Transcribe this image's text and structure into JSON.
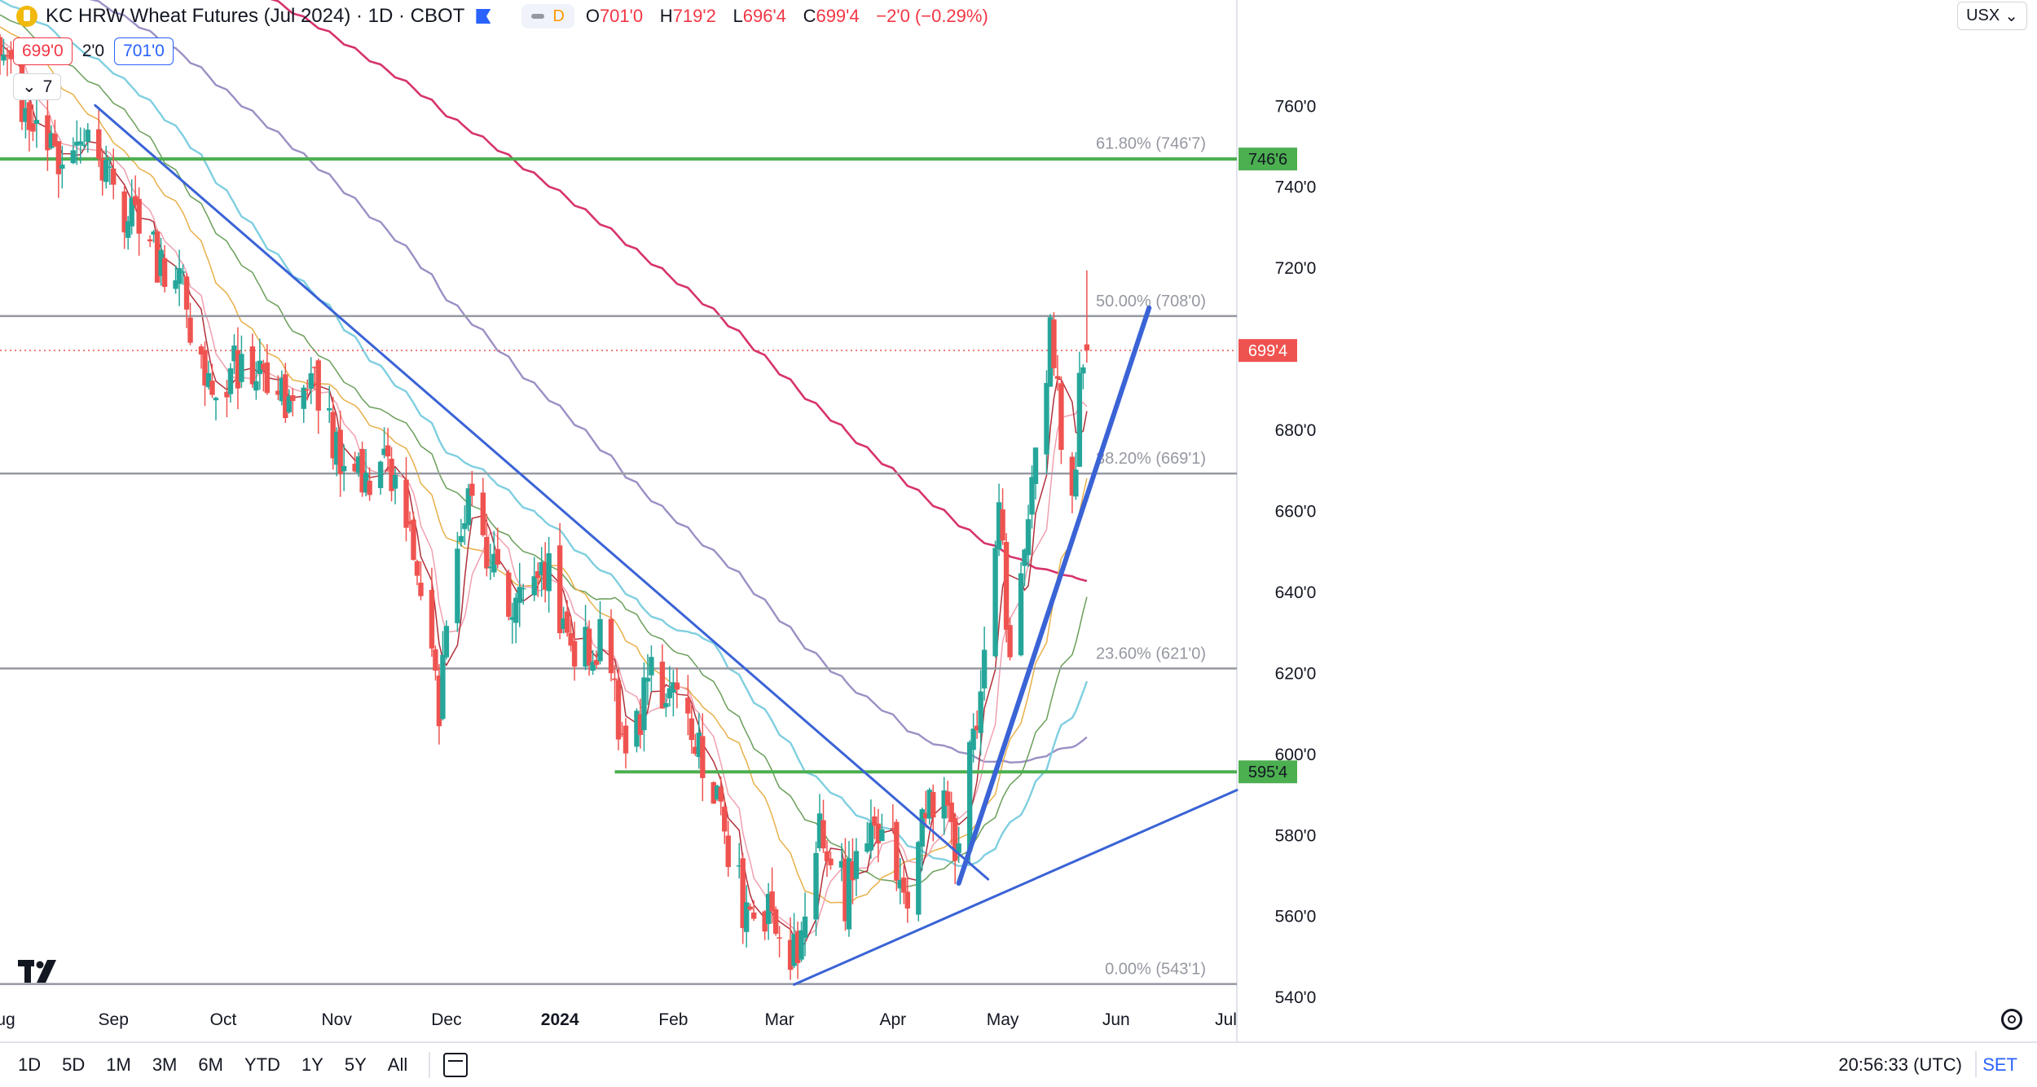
{
  "header": {
    "title": "KC HRW Wheat Futures (Jul 2024) · 1D · CBOT",
    "badge_letter": "D",
    "ohlc": [
      {
        "k": "O",
        "v": "701'0"
      },
      {
        "k": "H",
        "v": "719'2"
      },
      {
        "k": "L",
        "v": "696'4"
      },
      {
        "k": "C",
        "v": "699'4"
      }
    ],
    "change": "−2'0 (−0.29%)",
    "bid": "699'0",
    "spread": "2'0",
    "ask": "701'0",
    "indicator_count": "7",
    "currency": "USX"
  },
  "toolbar": {
    "ranges": [
      "1D",
      "5D",
      "1M",
      "3M",
      "6M",
      "YTD",
      "1Y",
      "5Y",
      "All"
    ],
    "time": "20:56:33 (UTC)",
    "set_label": "SET"
  },
  "colors": {
    "up": "#26a69a",
    "down": "#ef5350",
    "fib": "#9598a1",
    "support": "#4caf50",
    "trend": "#3a63d6",
    "ema200": "#d6336c",
    "ma100": "#9c8fc4",
    "ma50": "#7fcfe0"
  },
  "chart_data": {
    "type": "candlestick",
    "title": "KC HRW Wheat Futures (Jul 2024) · 1D · CBOT",
    "y_axis": {
      "ylim": [
        533,
        786
      ],
      "ticks": [
        "760'0",
        "740'0",
        "720'0",
        "680'0",
        "660'0",
        "640'0",
        "620'0",
        "600'0",
        "580'0",
        "560'0",
        "540'0"
      ],
      "tick_values": [
        760,
        740,
        720,
        680,
        660,
        640,
        620,
        600,
        580,
        560,
        540
      ]
    },
    "x_axis": {
      "xlim": [
        "2023-08-01",
        "2024-07-04"
      ],
      "labels": [
        {
          "text": "Aug",
          "date": "2023-08-01"
        },
        {
          "text": "Sep",
          "date": "2023-09-01"
        },
        {
          "text": "Oct",
          "date": "2023-10-01"
        },
        {
          "text": "Nov",
          "date": "2023-11-01"
        },
        {
          "text": "Dec",
          "date": "2023-12-01"
        },
        {
          "text": "2024",
          "date": "2024-01-01",
          "bold": true
        },
        {
          "text": "Feb",
          "date": "2024-02-01"
        },
        {
          "text": "Mar",
          "date": "2024-03-01"
        },
        {
          "text": "Apr",
          "date": "2024-04-01"
        },
        {
          "text": "May",
          "date": "2024-05-01"
        },
        {
          "text": "Jun",
          "date": "2024-06-01"
        },
        {
          "text": "Jul",
          "date": "2024-07-01"
        }
      ]
    },
    "anchors": [
      [
        "2023-08-01",
        775
      ],
      [
        "2023-08-10",
        750
      ],
      [
        "2023-08-25",
        748
      ],
      [
        "2023-09-08",
        730
      ],
      [
        "2023-09-20",
        712
      ],
      [
        "2023-09-28",
        690
      ],
      [
        "2023-10-06",
        698
      ],
      [
        "2023-10-18",
        688
      ],
      [
        "2023-10-27",
        690
      ],
      [
        "2023-11-03",
        670
      ],
      [
        "2023-11-10",
        668
      ],
      [
        "2023-11-17",
        672
      ],
      [
        "2023-11-24",
        640
      ],
      [
        "2023-11-29",
        612
      ],
      [
        "2023-12-05",
        660
      ],
      [
        "2023-12-08",
        668
      ],
      [
        "2023-12-15",
        640
      ],
      [
        "2023-12-22",
        640
      ],
      [
        "2023-12-29",
        645
      ],
      [
        "2024-01-05",
        625
      ],
      [
        "2024-01-12",
        628
      ],
      [
        "2024-01-19",
        600
      ],
      [
        "2024-01-26",
        618
      ],
      [
        "2024-02-02",
        610
      ],
      [
        "2024-02-08",
        602
      ],
      [
        "2024-02-15",
        580
      ],
      [
        "2024-02-21",
        560
      ],
      [
        "2024-02-28",
        560
      ],
      [
        "2024-03-05",
        550
      ],
      [
        "2024-03-12",
        585
      ],
      [
        "2024-03-19",
        565
      ],
      [
        "2024-03-26",
        585
      ],
      [
        "2024-04-01",
        578
      ],
      [
        "2024-04-04",
        562
      ],
      [
        "2024-04-10",
        585
      ],
      [
        "2024-04-16",
        584
      ],
      [
        "2024-04-19",
        576
      ],
      [
        "2024-04-22",
        598
      ],
      [
        "2024-04-26",
        620
      ],
      [
        "2024-04-30",
        656
      ],
      [
        "2024-05-03",
        628
      ],
      [
        "2024-05-07",
        645
      ],
      [
        "2024-05-10",
        672
      ],
      [
        "2024-05-14",
        704
      ],
      [
        "2024-05-17",
        678
      ],
      [
        "2024-05-20",
        665
      ],
      [
        "2024-05-23",
        700
      ],
      [
        "2024-05-24",
        699.5
      ]
    ],
    "last_candle": {
      "date": "2024-05-24",
      "open": 701,
      "high": 719.25,
      "low": 696.5,
      "close": 699.5
    },
    "last_price_label": "699'4",
    "moving_averages": [
      {
        "period": 200,
        "color": "#d6336c",
        "width": 2.6
      },
      {
        "period": 100,
        "color": "#9c8fc4",
        "width": 2.4
      },
      {
        "period": 50,
        "color": "#7fcfe0",
        "width": 2.4
      },
      {
        "period": 34,
        "color": "#6a9f5a",
        "width": 1.5
      },
      {
        "period": 21,
        "color": "#e8b04a",
        "width": 1.5
      },
      {
        "period": 8,
        "color": "#f0a0b0",
        "width": 1.5
      },
      {
        "period": 5,
        "color": "#b0303a",
        "width": 1.5
      }
    ],
    "fib_levels": [
      {
        "pct": "61.80%",
        "value": 746.875,
        "label": "61.80% (746'7)"
      },
      {
        "pct": "50.00%",
        "value": 708.0,
        "label": "50.00% (708'0)"
      },
      {
        "pct": "38.20%",
        "value": 669.125,
        "label": "38.20% (669'1)"
      },
      {
        "pct": "23.60%",
        "value": 621.0,
        "label": "23.60% (621'0)"
      },
      {
        "pct": "0.00%",
        "value": 543.125,
        "label": "0.00% (543'1)"
      }
    ],
    "support_lines": [
      {
        "value": 746.75,
        "label": "746'6",
        "start": "2023-08-01"
      },
      {
        "value": 595.5,
        "label": "595'4",
        "start": "2024-01-16"
      }
    ],
    "trendlines": [
      {
        "from": [
          "2023-08-27",
          760
        ],
        "to": [
          "2024-04-27",
          569
        ],
        "width": 3
      },
      {
        "from": [
          "2024-03-05",
          543
        ],
        "to": [
          "2024-07-04",
          591
        ],
        "width": 3
      },
      {
        "from": [
          "2024-04-19",
          568
        ],
        "to": [
          "2024-06-10",
          710
        ],
        "width": 6
      }
    ]
  }
}
